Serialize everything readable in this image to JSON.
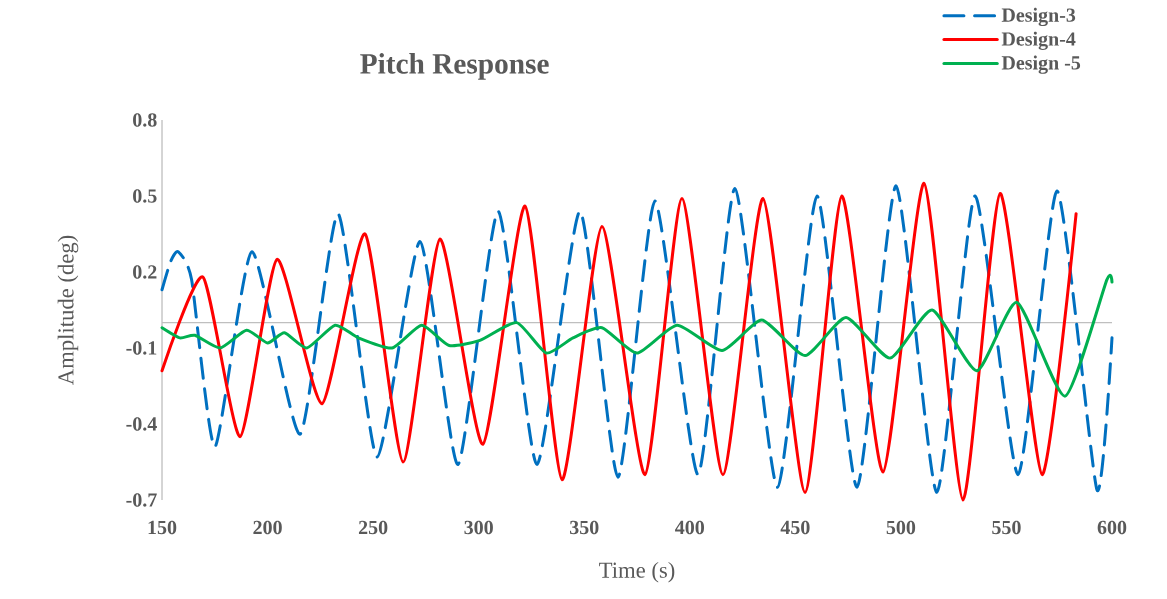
{
  "chart_data": {
    "type": "line",
    "title": "Pitch Response",
    "xlabel": "Time (s)",
    "ylabel": "Amplitude (deg)",
    "xlim": [
      150,
      600
    ],
    "xticks": [
      150,
      200,
      250,
      300,
      350,
      400,
      450,
      500,
      550,
      600
    ],
    "ylim": [
      -0.7,
      0.8
    ],
    "yticks": [
      0.8,
      0.5,
      0.2,
      -0.1,
      -0.4,
      -0.7
    ],
    "grid": false,
    "legend": "top right",
    "marker": "none",
    "ref_lines": [
      {
        "axis": "y",
        "value": 0,
        "color": "#bfbfbf"
      }
    ],
    "series": [
      {
        "name": "Design-3",
        "color": "#0070c0",
        "line_style": "dashed",
        "x": [
          150,
          154,
          157.6,
          164,
          175.1,
          192.6,
          215.4,
          233.4,
          251.8,
          272.2,
          290.2,
          309.2,
          327.6,
          348,
          366,
          383.5,
          403.9,
          421.4,
          441.5,
          460.3,
          479.2,
          497.7,
          517,
          535.1,
          555.5,
          574,
          592.9,
          600
        ],
        "values": [
          0.13,
          0.24,
          0.28,
          0.17,
          -0.49,
          0.28,
          -0.44,
          0.43,
          -0.53,
          0.32,
          -0.56,
          0.44,
          -0.56,
          0.44,
          -0.61,
          0.48,
          -0.6,
          0.53,
          -0.65,
          0.5,
          -0.65,
          0.54,
          -0.67,
          0.5,
          -0.6,
          0.52,
          -0.66,
          -0.06
        ]
      },
      {
        "name": "Design-4",
        "color": "#ff0000",
        "line_style": "solid",
        "x": [
          150,
          169.4,
          187,
          204.5,
          225.8,
          246.2,
          264.2,
          281.7,
          302,
          322,
          339.5,
          358.4,
          378.8,
          396.3,
          415.7,
          434.7,
          454.6,
          472,
          491.5,
          511,
          529.4,
          547,
          566.9,
          583
        ],
        "values": [
          -0.19,
          0.18,
          -0.45,
          0.25,
          -0.32,
          0.35,
          -0.55,
          0.33,
          -0.48,
          0.46,
          -0.62,
          0.38,
          -0.6,
          0.49,
          -0.6,
          0.49,
          -0.67,
          0.5,
          -0.59,
          0.55,
          -0.7,
          0.51,
          -0.6,
          0.43
        ]
      },
      {
        "name": "Design -5",
        "color": "#00b050",
        "line_style": "solid",
        "x": [
          150,
          158.5,
          165.6,
          177.5,
          190,
          200,
          208,
          218.6,
          232,
          243,
          259,
          273,
          286,
          300.6,
          318,
          332,
          344.7,
          358.4,
          375,
          394,
          415.3,
          434.2,
          454.6,
          474,
          494.9,
          514.8,
          536,
          555,
          577.8,
          597.6,
          600
        ],
        "values": [
          -0.02,
          -0.06,
          -0.05,
          -0.1,
          -0.03,
          -0.08,
          -0.04,
          -0.1,
          -0.01,
          -0.06,
          -0.1,
          -0.01,
          -0.09,
          -0.07,
          0,
          -0.12,
          -0.06,
          -0.02,
          -0.12,
          -0.01,
          -0.11,
          0.01,
          -0.13,
          0.02,
          -0.14,
          0.05,
          -0.19,
          0.08,
          -0.29,
          0.17,
          0.16
        ]
      }
    ]
  }
}
